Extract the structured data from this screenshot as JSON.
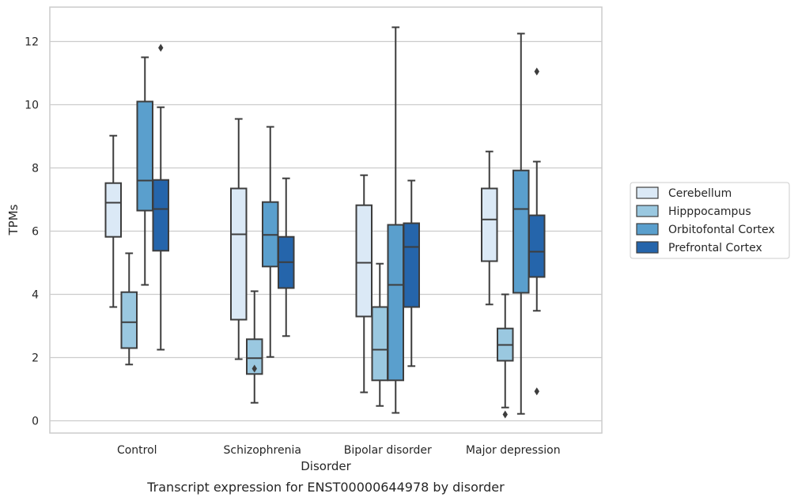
{
  "caption": "Transcript expression for ENST00000644978 by disorder",
  "chart_data": {
    "type": "boxplot",
    "title": "",
    "xlabel": "Disorder",
    "ylabel": "TPMs",
    "ylim": [
      -0.4,
      13.1
    ],
    "yticks": [
      0,
      2,
      4,
      6,
      8,
      10,
      12
    ],
    "grid": "horizontal",
    "legend_position": "right",
    "categories": [
      "Control",
      "Schizophrenia",
      "Bipolar disorder",
      "Major depression"
    ],
    "series": [
      {
        "name": "Cerebellum",
        "color": "#dbe9f6",
        "boxes": [
          {
            "whisker_low": 3.6,
            "q1": 5.82,
            "median": 6.9,
            "q3": 7.52,
            "whisker_high": 9.02,
            "outliers": []
          },
          {
            "whisker_low": 1.95,
            "q1": 3.2,
            "median": 5.9,
            "q3": 7.35,
            "whisker_high": 9.55,
            "outliers": []
          },
          {
            "whisker_low": 0.9,
            "q1": 3.3,
            "median": 5.0,
            "q3": 6.82,
            "whisker_high": 7.77,
            "outliers": []
          },
          {
            "whisker_low": 3.68,
            "q1": 5.05,
            "median": 6.37,
            "q3": 7.35,
            "whisker_high": 8.52,
            "outliers": []
          }
        ]
      },
      {
        "name": "Hipppocampus",
        "color": "#9ac8e0",
        "boxes": [
          {
            "whisker_low": 1.78,
            "q1": 2.3,
            "median": 3.12,
            "q3": 4.07,
            "whisker_high": 5.3,
            "outliers": []
          },
          {
            "whisker_low": 0.57,
            "q1": 1.48,
            "median": 1.98,
            "q3": 2.58,
            "whisker_high": 4.1,
            "outliers": [
              1.65
            ]
          },
          {
            "whisker_low": 0.47,
            "q1": 1.28,
            "median": 2.25,
            "q3": 3.6,
            "whisker_high": 4.97,
            "outliers": []
          },
          {
            "whisker_low": 0.42,
            "q1": 1.9,
            "median": 2.4,
            "q3": 2.92,
            "whisker_high": 4.0,
            "outliers": [
              0.2
            ]
          }
        ]
      },
      {
        "name": "Orbitofontal Cortex",
        "color": "#5a9fcd",
        "boxes": [
          {
            "whisker_low": 4.3,
            "q1": 6.65,
            "median": 7.6,
            "q3": 10.1,
            "whisker_high": 11.5,
            "outliers": []
          },
          {
            "whisker_low": 2.02,
            "q1": 4.88,
            "median": 5.88,
            "q3": 6.92,
            "whisker_high": 9.3,
            "outliers": []
          },
          {
            "whisker_low": 0.25,
            "q1": 1.28,
            "median": 4.3,
            "q3": 6.2,
            "whisker_high": 12.45,
            "outliers": []
          },
          {
            "whisker_low": 0.22,
            "q1": 4.05,
            "median": 6.7,
            "q3": 7.92,
            "whisker_high": 12.25,
            "outliers": []
          }
        ]
      },
      {
        "name": "Prefrontal Cortex",
        "color": "#2565ab",
        "boxes": [
          {
            "whisker_low": 2.25,
            "q1": 5.38,
            "median": 6.7,
            "q3": 7.62,
            "whisker_high": 9.92,
            "outliers": [
              11.8
            ]
          },
          {
            "whisker_low": 2.68,
            "q1": 4.2,
            "median": 5.02,
            "q3": 5.82,
            "whisker_high": 7.67,
            "outliers": []
          },
          {
            "whisker_low": 1.73,
            "q1": 3.6,
            "median": 5.5,
            "q3": 6.25,
            "whisker_high": 7.6,
            "outliers": []
          },
          {
            "whisker_low": 3.48,
            "q1": 4.55,
            "median": 5.35,
            "q3": 6.5,
            "whisker_high": 8.2,
            "outliers": [
              11.05,
              0.93
            ]
          }
        ]
      }
    ]
  }
}
